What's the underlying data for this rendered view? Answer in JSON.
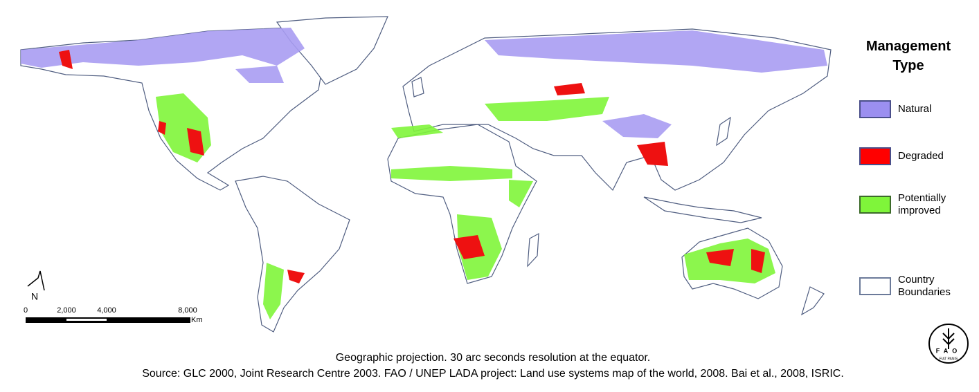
{
  "legend": {
    "title": "Management Type",
    "items": [
      {
        "label": "Natural",
        "color": "#9b8ff0",
        "border": "#4a4f8a"
      },
      {
        "label": "Degraded",
        "color": "#ff0000",
        "border": "#4a4f8a"
      },
      {
        "label": "Potentially improved",
        "color": "#7ff53a",
        "border": "#3c6a2a"
      },
      {
        "label": "Country Boundaries",
        "color": "#ffffff",
        "border": "#6b7a99"
      }
    ]
  },
  "scale_bar": {
    "labels": [
      "0",
      "2,000",
      "4,000",
      "8,000"
    ],
    "unit": "Km"
  },
  "north_arrow": {
    "label": "N"
  },
  "caption": {
    "line1": "Geographic projection. 30 arc seconds resolution at the equator.",
    "line2": "Source: GLC 2000, Joint Research Centre 2003. FAO / UNEP LADA project: Land use systems map of the world, 2008. Bai et al., 2008, ISRIC."
  },
  "logo": {
    "letters": "FAO",
    "motto": "FIAT PANIS"
  }
}
